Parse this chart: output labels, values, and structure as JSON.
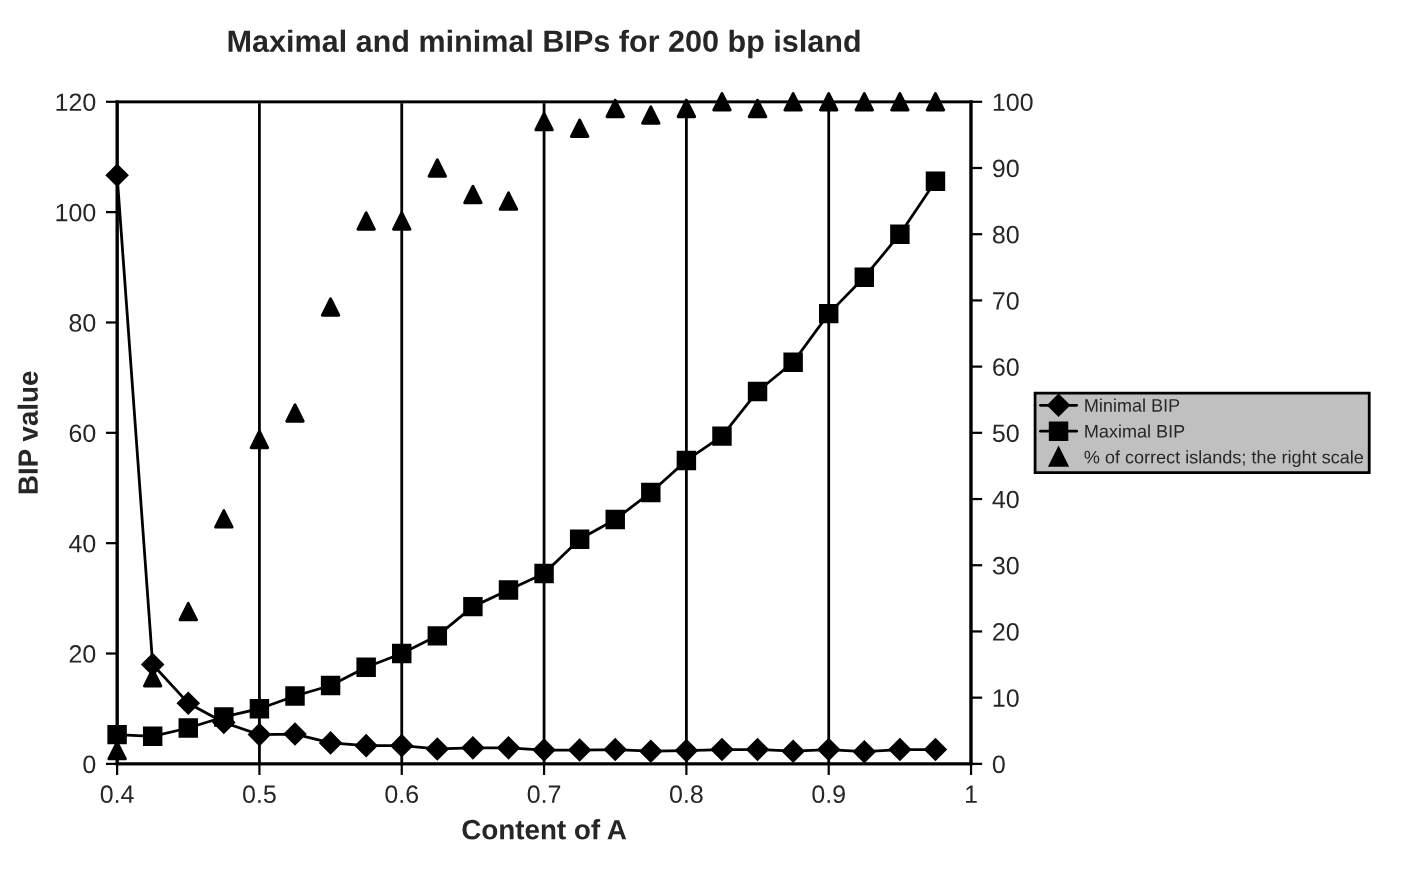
{
  "chart_data": {
    "type": "line",
    "title": "Maximal and minimal BIPs for 200 bp island",
    "xlabel": "Content of A",
    "ylabel": "BIP value",
    "x": [
      0.4,
      0.425,
      0.45,
      0.475,
      0.5,
      0.525,
      0.55,
      0.575,
      0.6,
      0.625,
      0.65,
      0.675,
      0.7,
      0.725,
      0.75,
      0.775,
      0.8,
      0.825,
      0.85,
      0.875,
      0.9,
      0.925,
      0.95,
      0.975
    ],
    "series": [
      {
        "name": "Minimal BIP",
        "color": "#000000",
        "marker": "diamond",
        "values": [
          106.7,
          18,
          11,
          7.5,
          5.3,
          5.4,
          3.8,
          3.3,
          3.3,
          2.7,
          2.9,
          2.9,
          2.5,
          2.5,
          2.6,
          2.3,
          2.4,
          2.6,
          2.6,
          2.3,
          2.6,
          2.2,
          2.6,
          2.6
        ]
      },
      {
        "name": "Maximal BIP",
        "color": "#000000",
        "marker": "square",
        "values": [
          5.3,
          5,
          6.5,
          8.5,
          10,
          12.3,
          14.2,
          17.5,
          20,
          23.2,
          28.5,
          31.5,
          34.5,
          40.7,
          44.3,
          49.2,
          55,
          59.4,
          67.5,
          72.8,
          81.6,
          88.2,
          96,
          105.6
        ]
      },
      {
        "name": "% of correct islands; the right scale",
        "type": "scatter",
        "axis": "y2",
        "color": "#000000",
        "marker": "triangle",
        "values": [
          2,
          13,
          23,
          37,
          49,
          53,
          69,
          82,
          82,
          90,
          86,
          85,
          97,
          96,
          99,
          98,
          99,
          100,
          99,
          100,
          100,
          100,
          100,
          100
        ]
      }
    ],
    "xlim": [
      0.4,
      1
    ],
    "xticks": [
      0.4,
      0.5,
      0.6,
      0.7,
      0.8,
      0.9,
      1
    ],
    "ylim": [
      0,
      120
    ],
    "yticks": [
      0,
      20,
      40,
      60,
      80,
      100,
      120
    ],
    "y2lim": [
      0,
      100
    ],
    "y2ticks": [
      0,
      10,
      20,
      30,
      40,
      50,
      60,
      70,
      80,
      90,
      100
    ],
    "grid": "x",
    "legend": "right"
  }
}
